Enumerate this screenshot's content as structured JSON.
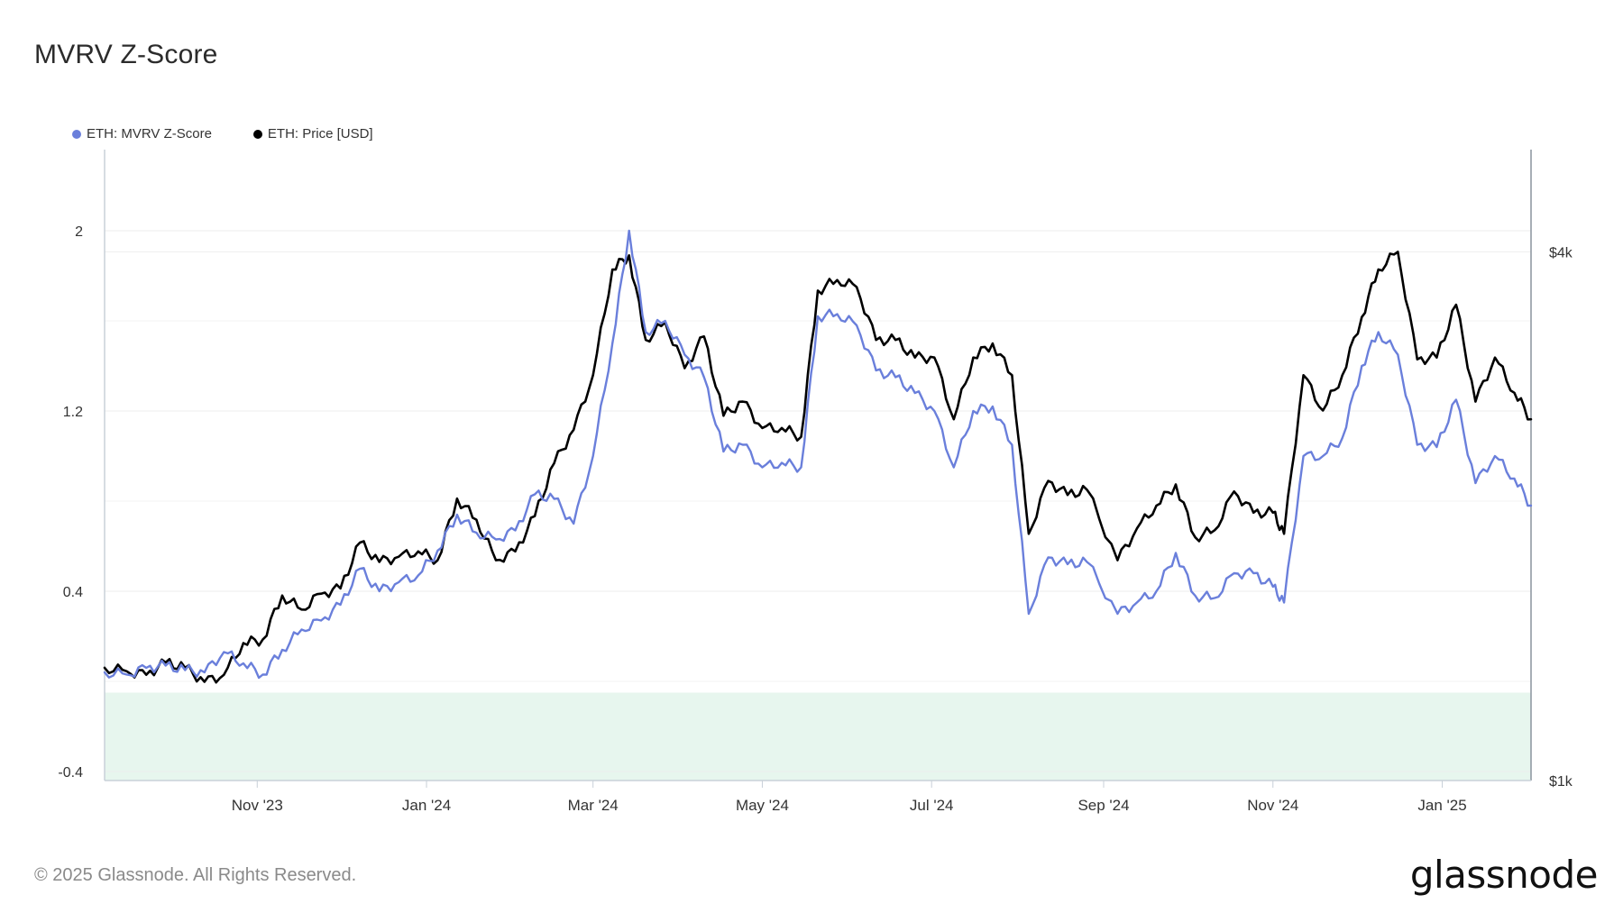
{
  "title": "MVRV Z-Score",
  "legend": [
    {
      "label": "ETH: MVRV Z-Score",
      "color": "#6a7fdb"
    },
    {
      "label": "ETH: Price [USD]",
      "color": "#000000"
    }
  ],
  "footer": {
    "copyright": "© 2025 Glassnode. All Rights Reserved.",
    "brand": "glassnode"
  },
  "colors": {
    "zscore": "#6a7fdb",
    "price": "#000000",
    "green_zone": "#e7f6ee",
    "grid": "#eeeeee",
    "axis": "#c8d0d8"
  },
  "chart_data": {
    "type": "line",
    "title": "MVRV Z-Score",
    "xlabel": "",
    "ylabel": "",
    "x_ticks": [
      "Nov '23",
      "Jan '24",
      "Mar '24",
      "May '24",
      "Jul '24",
      "Sep '24",
      "Nov '24",
      "Jan '25"
    ],
    "x_tick_dates": [
      "2023-11-01",
      "2024-01-01",
      "2024-03-01",
      "2024-05-01",
      "2024-07-01",
      "2024-09-01",
      "2024-11-01",
      "2025-01-01"
    ],
    "x_range": [
      "2023-09-07",
      "2025-02-02"
    ],
    "y_left": {
      "ticks": [
        "-0.4",
        "0.4",
        "1.2",
        "2"
      ],
      "range": [
        -0.44,
        2.36
      ]
    },
    "y_right": {
      "ticks": [
        "$1k",
        "$4k"
      ],
      "tick_values": [
        1000,
        4000
      ],
      "range": [
        1000,
        4580
      ]
    },
    "green_zone": [
      -0.44,
      -0.05
    ],
    "grid": true,
    "legend_position": "top-left",
    "series": [
      {
        "name": "ETH: MVRV Z-Score",
        "axis": "left",
        "points": [
          [
            "2023-09-07",
            0.04
          ],
          [
            "2023-09-15",
            0.03
          ],
          [
            "2023-09-22",
            0.06
          ],
          [
            "2023-09-29",
            0.07
          ],
          [
            "2023-10-06",
            0.05
          ],
          [
            "2023-10-13",
            0.04
          ],
          [
            "2023-10-20",
            0.13
          ],
          [
            "2023-10-27",
            0.08
          ],
          [
            "2023-11-03",
            0.03
          ],
          [
            "2023-11-10",
            0.14
          ],
          [
            "2023-11-17",
            0.23
          ],
          [
            "2023-11-24",
            0.27
          ],
          [
            "2023-12-01",
            0.34
          ],
          [
            "2023-12-08",
            0.5
          ],
          [
            "2023-12-15",
            0.4
          ],
          [
            "2023-12-22",
            0.44
          ],
          [
            "2023-12-29",
            0.47
          ],
          [
            "2024-01-05",
            0.58
          ],
          [
            "2024-01-12",
            0.74
          ],
          [
            "2024-01-19",
            0.66
          ],
          [
            "2024-01-26",
            0.63
          ],
          [
            "2024-02-02",
            0.67
          ],
          [
            "2024-02-09",
            0.83
          ],
          [
            "2024-02-16",
            0.81
          ],
          [
            "2024-02-23",
            0.7
          ],
          [
            "2024-03-01",
            1.0
          ],
          [
            "2024-03-08",
            1.5
          ],
          [
            "2024-03-14",
            2.0
          ],
          [
            "2024-03-20",
            1.55
          ],
          [
            "2024-03-27",
            1.6
          ],
          [
            "2024-04-03",
            1.45
          ],
          [
            "2024-04-10",
            1.35
          ],
          [
            "2024-04-17",
            1.02
          ],
          [
            "2024-04-24",
            1.05
          ],
          [
            "2024-05-01",
            0.95
          ],
          [
            "2024-05-08",
            0.97
          ],
          [
            "2024-05-15",
            0.95
          ],
          [
            "2024-05-21",
            1.62
          ],
          [
            "2024-05-28",
            1.63
          ],
          [
            "2024-06-04",
            1.58
          ],
          [
            "2024-06-11",
            1.38
          ],
          [
            "2024-06-18",
            1.35
          ],
          [
            "2024-06-25",
            1.28
          ],
          [
            "2024-07-02",
            1.2
          ],
          [
            "2024-07-09",
            0.95
          ],
          [
            "2024-07-16",
            1.2
          ],
          [
            "2024-07-23",
            1.22
          ],
          [
            "2024-07-30",
            1.05
          ],
          [
            "2024-08-05",
            0.3
          ],
          [
            "2024-08-12",
            0.55
          ],
          [
            "2024-08-19",
            0.52
          ],
          [
            "2024-08-26",
            0.53
          ],
          [
            "2024-09-06",
            0.3
          ],
          [
            "2024-09-13",
            0.35
          ],
          [
            "2024-09-20",
            0.4
          ],
          [
            "2024-09-27",
            0.57
          ],
          [
            "2024-10-04",
            0.38
          ],
          [
            "2024-10-11",
            0.37
          ],
          [
            "2024-10-18",
            0.48
          ],
          [
            "2024-10-25",
            0.48
          ],
          [
            "2024-11-01",
            0.42
          ],
          [
            "2024-11-05",
            0.35
          ],
          [
            "2024-11-12",
            1.0
          ],
          [
            "2024-11-19",
            1.0
          ],
          [
            "2024-11-26",
            1.08
          ],
          [
            "2024-12-03",
            1.4
          ],
          [
            "2024-12-09",
            1.55
          ],
          [
            "2024-12-16",
            1.45
          ],
          [
            "2024-12-23",
            1.05
          ],
          [
            "2024-12-30",
            1.04
          ],
          [
            "2025-01-06",
            1.25
          ],
          [
            "2025-01-13",
            0.88
          ],
          [
            "2025-01-20",
            1.0
          ],
          [
            "2025-01-27",
            0.9
          ],
          [
            "2025-02-02",
            0.78
          ]
        ]
      },
      {
        "name": "ETH: Price [USD]",
        "axis": "right",
        "points": [
          [
            "2023-09-07",
            1640
          ],
          [
            "2023-09-15",
            1620
          ],
          [
            "2023-09-22",
            1600
          ],
          [
            "2023-09-29",
            1670
          ],
          [
            "2023-10-06",
            1640
          ],
          [
            "2023-10-13",
            1560
          ],
          [
            "2023-10-20",
            1600
          ],
          [
            "2023-10-27",
            1780
          ],
          [
            "2023-11-03",
            1800
          ],
          [
            "2023-11-10",
            2050
          ],
          [
            "2023-11-17",
            1970
          ],
          [
            "2023-11-24",
            2060
          ],
          [
            "2023-12-01",
            2090
          ],
          [
            "2023-12-08",
            2350
          ],
          [
            "2023-12-15",
            2240
          ],
          [
            "2023-12-22",
            2270
          ],
          [
            "2023-12-29",
            2300
          ],
          [
            "2024-01-05",
            2250
          ],
          [
            "2024-01-12",
            2600
          ],
          [
            "2024-01-19",
            2480
          ],
          [
            "2024-01-26",
            2250
          ],
          [
            "2024-02-02",
            2300
          ],
          [
            "2024-02-09",
            2500
          ],
          [
            "2024-02-16",
            2800
          ],
          [
            "2024-02-23",
            2990
          ],
          [
            "2024-03-01",
            3300
          ],
          [
            "2024-03-08",
            3900
          ],
          [
            "2024-03-14",
            3980
          ],
          [
            "2024-03-20",
            3500
          ],
          [
            "2024-03-27",
            3600
          ],
          [
            "2024-04-03",
            3340
          ],
          [
            "2024-04-10",
            3520
          ],
          [
            "2024-04-17",
            3070
          ],
          [
            "2024-04-24",
            3150
          ],
          [
            "2024-05-01",
            3000
          ],
          [
            "2024-05-08",
            3000
          ],
          [
            "2024-05-15",
            2950
          ],
          [
            "2024-05-21",
            3780
          ],
          [
            "2024-05-28",
            3840
          ],
          [
            "2024-06-04",
            3800
          ],
          [
            "2024-06-11",
            3500
          ],
          [
            "2024-06-18",
            3500
          ],
          [
            "2024-06-25",
            3400
          ],
          [
            "2024-07-02",
            3400
          ],
          [
            "2024-07-09",
            3050
          ],
          [
            "2024-07-16",
            3400
          ],
          [
            "2024-07-23",
            3480
          ],
          [
            "2024-07-30",
            3300
          ],
          [
            "2024-08-05",
            2400
          ],
          [
            "2024-08-12",
            2700
          ],
          [
            "2024-08-19",
            2620
          ],
          [
            "2024-08-26",
            2650
          ],
          [
            "2024-09-06",
            2250
          ],
          [
            "2024-09-13",
            2430
          ],
          [
            "2024-09-20",
            2560
          ],
          [
            "2024-09-27",
            2680
          ],
          [
            "2024-10-04",
            2380
          ],
          [
            "2024-10-11",
            2420
          ],
          [
            "2024-10-18",
            2640
          ],
          [
            "2024-10-25",
            2520
          ],
          [
            "2024-11-01",
            2520
          ],
          [
            "2024-11-05",
            2400
          ],
          [
            "2024-11-12",
            3300
          ],
          [
            "2024-11-19",
            3100
          ],
          [
            "2024-11-26",
            3300
          ],
          [
            "2024-12-03",
            3630
          ],
          [
            "2024-12-09",
            3900
          ],
          [
            "2024-12-16",
            4000
          ],
          [
            "2024-12-23",
            3390
          ],
          [
            "2024-12-30",
            3400
          ],
          [
            "2025-01-06",
            3700
          ],
          [
            "2025-01-13",
            3150
          ],
          [
            "2025-01-20",
            3400
          ],
          [
            "2025-01-27",
            3200
          ],
          [
            "2025-02-02",
            3050
          ]
        ]
      }
    ]
  }
}
